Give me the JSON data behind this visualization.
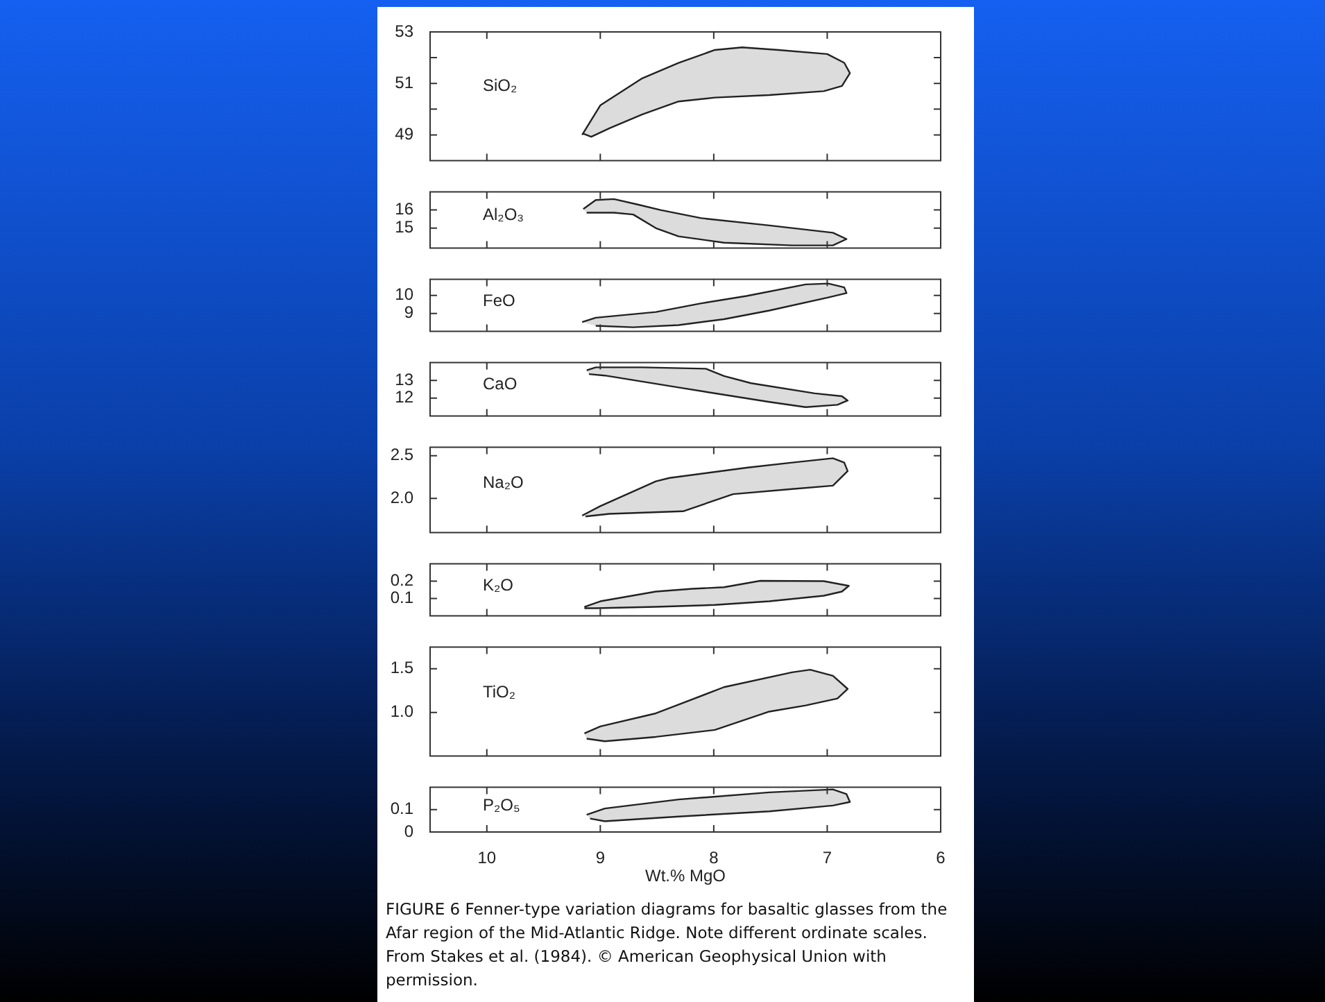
{
  "chart_data": [
    {
      "type": "area",
      "title": "SiO₂",
      "xlim": [
        10.5,
        6
      ],
      "xticks": [
        10,
        9,
        8,
        7,
        6
      ],
      "ylim": [
        48,
        53
      ],
      "yticks": [
        49,
        {
          "value": 50,
          "label": null
        },
        51,
        {
          "value": 52,
          "label": null
        },
        53
      ],
      "tick_labels": "y",
      "series": [
        {
          "color": "#dcdcdc",
          "x": [
            9.16,
            9.0,
            8.63,
            8.31,
            7.99,
            7.75,
            7.43,
            7.0,
            6.85,
            6.8,
            6.87,
            7.03,
            7.51,
            7.99,
            8.31,
            8.63,
            8.92,
            9.08,
            9.15
          ],
          "values": [
            49.0,
            50.15,
            51.2,
            51.8,
            52.3,
            52.4,
            52.3,
            52.14,
            51.8,
            51.4,
            50.9,
            50.7,
            50.55,
            50.45,
            50.3,
            49.8,
            49.26,
            48.93,
            49.05
          ]
        }
      ]
    },
    {
      "type": "area",
      "title": "Al₂O₃",
      "xlim": [
        10.5,
        6
      ],
      "xticks": [
        10,
        9,
        8,
        7,
        6
      ],
      "ylim": [
        13.9,
        17
      ],
      "yticks": [
        15,
        16
      ],
      "tick_labels": "y",
      "series": [
        {
          "color": "#dcdcdc",
          "x": [
            9.15,
            9.04,
            8.88,
            8.67,
            8.47,
            8.11,
            7.51,
            6.95,
            6.83,
            6.95,
            7.31,
            7.91,
            8.31,
            8.51,
            8.71,
            8.88,
            9.12
          ],
          "values": [
            16.05,
            16.55,
            16.6,
            16.3,
            16.0,
            15.55,
            15.15,
            14.75,
            14.4,
            14.05,
            14.05,
            14.2,
            14.55,
            15.0,
            15.75,
            15.85,
            15.85
          ]
        }
      ]
    },
    {
      "type": "area",
      "title": "FeO",
      "xlim": [
        10.5,
        6
      ],
      "xticks": [
        10,
        9,
        8,
        7,
        6
      ],
      "ylim": [
        8,
        10.9
      ],
      "yticks": [
        9,
        10
      ],
      "tick_labels": "y",
      "series": [
        {
          "color": "#dcdcdc",
          "x": [
            9.16,
            9.04,
            8.51,
            8.11,
            7.71,
            7.19,
            6.99,
            6.85,
            6.83,
            6.99,
            7.51,
            7.91,
            8.31,
            8.71,
            9.04
          ],
          "values": [
            8.52,
            8.76,
            9.08,
            9.56,
            9.97,
            10.61,
            10.66,
            10.45,
            10.13,
            9.89,
            9.16,
            8.68,
            8.35,
            8.23,
            8.31
          ]
        }
      ]
    },
    {
      "type": "area",
      "title": "CaO",
      "xlim": [
        10.5,
        6
      ],
      "xticks": [
        10,
        9,
        8,
        7,
        6
      ],
      "ylim": [
        11,
        14
      ],
      "yticks": [
        12,
        13
      ],
      "tick_labels": "y",
      "series": [
        {
          "color": "#dcdcdc",
          "x": [
            9.12,
            9.04,
            8.63,
            8.07,
            7.91,
            7.67,
            7.11,
            6.87,
            6.82,
            6.91,
            7.19,
            7.51,
            8.31,
            8.96,
            9.1
          ],
          "values": [
            13.56,
            13.73,
            13.73,
            13.65,
            13.24,
            12.84,
            12.27,
            12.11,
            11.87,
            11.63,
            11.5,
            11.79,
            12.6,
            13.27,
            13.35
          ]
        }
      ]
    },
    {
      "type": "area",
      "title": "Na₂O",
      "xlim": [
        10.5,
        6
      ],
      "xticks": [
        10,
        9,
        8,
        7,
        6
      ],
      "ylim": [
        1.6,
        2.6
      ],
      "yticks": [
        {
          "value": 2,
          "label": "2.0"
        },
        2.5
      ],
      "tick_labels": "y",
      "series": [
        {
          "color": "#dcdcdc",
          "x": [
            9.16,
            9.0,
            8.51,
            8.39,
            7.71,
            7.31,
            6.95,
            6.85,
            6.82,
            6.95,
            7.31,
            7.83,
            8.27,
            8.92,
            9.13
          ],
          "values": [
            1.8,
            1.91,
            2.2,
            2.24,
            2.36,
            2.42,
            2.47,
            2.42,
            2.32,
            2.15,
            2.11,
            2.05,
            1.85,
            1.82,
            1.79
          ]
        }
      ]
    },
    {
      "type": "area",
      "title": "K₂O",
      "xlim": [
        10.5,
        6
      ],
      "xticks": [
        10,
        9,
        8,
        7,
        6
      ],
      "ylim": [
        0,
        0.3
      ],
      "yticks": [
        0.1,
        0.2
      ],
      "tick_labels": "y",
      "series": [
        {
          "color": "#dcdcdc",
          "x": [
            9.14,
            9.0,
            8.51,
            8.19,
            7.91,
            7.59,
            7.03,
            6.81,
            6.87,
            7.03,
            7.51,
            7.99,
            8.51,
            9.04,
            9.14
          ],
          "values": [
            0.052,
            0.084,
            0.14,
            0.156,
            0.165,
            0.202,
            0.2,
            0.173,
            0.14,
            0.116,
            0.084,
            0.063,
            0.052,
            0.044,
            0.044
          ]
        }
      ]
    },
    {
      "type": "area",
      "title": "TiO₂",
      "xlim": [
        10.5,
        6
      ],
      "xticks": [
        10,
        9,
        8,
        7,
        6
      ],
      "ylim": [
        0.5,
        1.75
      ],
      "yticks": [
        {
          "value": 1,
          "label": "1.0"
        },
        1.5
      ],
      "tick_labels": "y",
      "series": [
        {
          "color": "#dcdcdc",
          "x": [
            9.14,
            9.0,
            8.51,
            7.91,
            7.31,
            7.15,
            6.95,
            6.82,
            6.91,
            7.19,
            7.51,
            7.99,
            8.51,
            8.96,
            9.12
          ],
          "values": [
            0.76,
            0.84,
            0.99,
            1.29,
            1.46,
            1.49,
            1.42,
            1.27,
            1.16,
            1.08,
            1.01,
            0.8,
            0.72,
            0.67,
            0.7
          ]
        }
      ]
    },
    {
      "type": "area",
      "title": "P₂O₅",
      "xlim": [
        10.5,
        6
      ],
      "xticks": [
        10,
        9,
        8,
        7,
        6
      ],
      "ylim": [
        0,
        0.2
      ],
      "yticks": [
        0,
        0.1
      ],
      "xlabel": "Wt.% MgO",
      "annotations": [
        "FIGURE 6 Fenner-type variation diagrams for basaltic glasses from the Afar region of the Mid-Atlantic Ridge. Note different ordinate scales. From Stakes et al. (1984). © American Geophysical Union with permission."
      ],
      "series": [
        {
          "color": "#dcdcdc",
          "x": [
            9.12,
            8.96,
            8.31,
            7.51,
            6.95,
            6.83,
            6.8,
            6.95,
            7.51,
            8.31,
            8.96,
            9.09
          ],
          "values": [
            0.077,
            0.105,
            0.145,
            0.177,
            0.19,
            0.169,
            0.134,
            0.118,
            0.092,
            0.069,
            0.048,
            0.06
          ]
        }
      ]
    }
  ]
}
